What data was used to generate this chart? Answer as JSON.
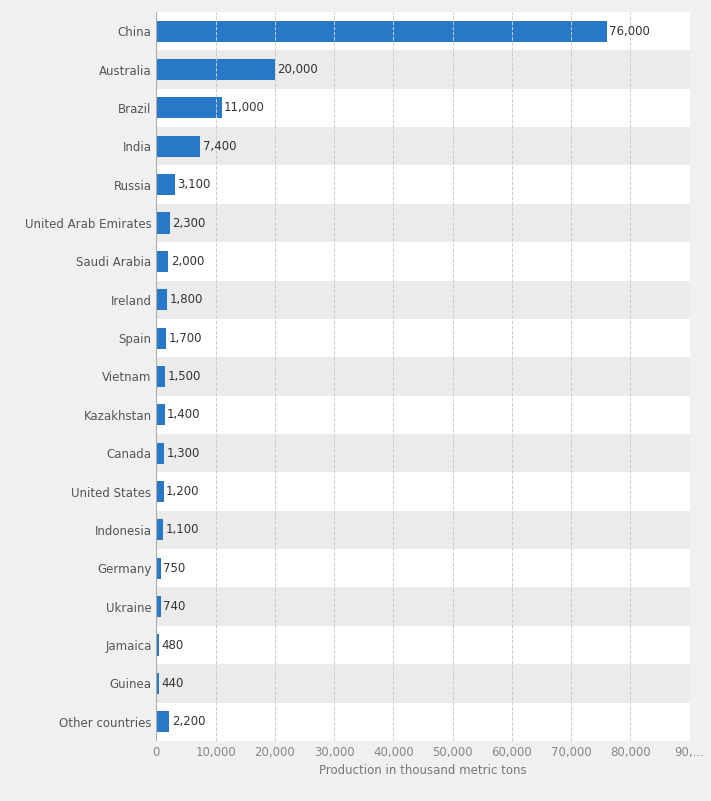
{
  "categories": [
    "China",
    "Australia",
    "Brazil",
    "India",
    "Russia",
    "United Arab Emirates",
    "Saudi Arabia",
    "Ireland",
    "Spain",
    "Vietnam",
    "Kazakhstan",
    "Canada",
    "United States",
    "Indonesia",
    "Germany",
    "Ukraine",
    "Jamaica",
    "Guinea",
    "Other countries"
  ],
  "values": [
    76000,
    20000,
    11000,
    7400,
    3100,
    2300,
    2000,
    1800,
    1700,
    1500,
    1400,
    1300,
    1200,
    1100,
    750,
    740,
    480,
    440,
    2200
  ],
  "bar_color": "#2878c8",
  "background_color": "#f0f0f0",
  "row_colors": [
    "#ffffff",
    "#ebebeb"
  ],
  "xlabel": "Production in thousand metric tons",
  "xlim": [
    0,
    90000
  ],
  "xticks": [
    0,
    10000,
    20000,
    30000,
    40000,
    50000,
    60000,
    70000,
    80000,
    90000
  ],
  "xtick_labels": [
    "0",
    "10,000",
    "20,000",
    "30,000",
    "40,000",
    "50,000",
    "60,000",
    "70,000",
    "80,000",
    "90,..."
  ],
  "label_fontsize": 8.5,
  "tick_fontsize": 8.5,
  "xlabel_fontsize": 8.5,
  "bar_height": 0.55,
  "value_label_color": "#333333",
  "value_label_fontsize": 8.5,
  "grid_color": "#cccccc",
  "ytick_color": "#555555",
  "xtick_color": "#888888"
}
